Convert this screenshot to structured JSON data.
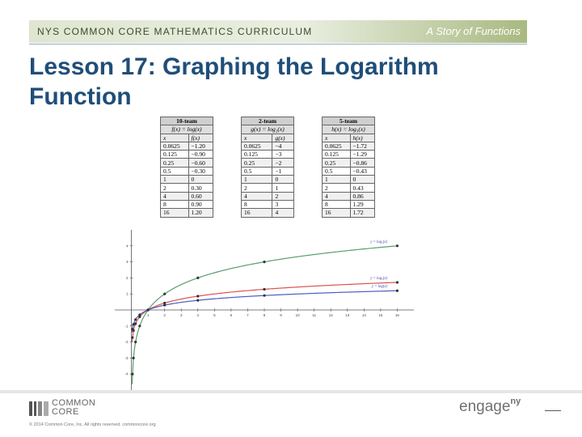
{
  "header": {
    "curriculum": "NYS COMMON CORE MATHEMATICS CURRICULUM",
    "story": "A Story of Functions"
  },
  "title": "Lesson 17:  Graphing the Logarithm Function",
  "tables": [
    {
      "team": "10-team",
      "function": "f(x) = log(x)",
      "col_x": "x",
      "col_y": "f(x)",
      "rows": [
        [
          "0.0625",
          "−1.20"
        ],
        [
          "0.125",
          "−0.90"
        ],
        [
          "0.25",
          "−0.60"
        ],
        [
          "0.5",
          "−0.30"
        ],
        [
          "1",
          "0"
        ],
        [
          "2",
          "0.30"
        ],
        [
          "4",
          "0.60"
        ],
        [
          "8",
          "0.90"
        ],
        [
          "16",
          "1.20"
        ]
      ]
    },
    {
      "team": "2-team",
      "function": "g(x) = log₂(x)",
      "col_x": "x",
      "col_y": "g(x)",
      "rows": [
        [
          "0.0625",
          "−4"
        ],
        [
          "0.125",
          "−3"
        ],
        [
          "0.25",
          "−2"
        ],
        [
          "0.5",
          "−1"
        ],
        [
          "1",
          "0"
        ],
        [
          "2",
          "1"
        ],
        [
          "4",
          "2"
        ],
        [
          "8",
          "3"
        ],
        [
          "16",
          "4"
        ]
      ]
    },
    {
      "team": "5-team",
      "function": "h(x) = log₅(x)",
      "col_x": "x",
      "col_y": "h(x)",
      "rows": [
        [
          "0.0625",
          "−1.72"
        ],
        [
          "0.125",
          "−1.29"
        ],
        [
          "0.25",
          "−0.86"
        ],
        [
          "0.5",
          "−0.43"
        ],
        [
          "1",
          "0"
        ],
        [
          "2",
          "0.43"
        ],
        [
          "4",
          "0.86"
        ],
        [
          "8",
          "1.29"
        ],
        [
          "16",
          "1.72"
        ]
      ]
    }
  ],
  "chart_data": {
    "type": "line",
    "xlim": [
      -1,
      17
    ],
    "ylim": [
      -5,
      5
    ],
    "x_ticks": [
      1,
      2,
      3,
      4,
      5,
      6,
      7,
      8,
      9,
      10,
      11,
      12,
      13,
      14,
      15,
      16
    ],
    "y_ticks": [
      -4,
      -3,
      -2,
      -1,
      1,
      2,
      3,
      4
    ],
    "grid": false,
    "series": [
      {
        "name": "y = log₂(x)",
        "color": "#5a9e6f",
        "x": [
          0.0625,
          0.125,
          0.25,
          0.5,
          1,
          2,
          4,
          8,
          16
        ],
        "y": [
          -4,
          -3,
          -2,
          -1,
          0,
          1,
          2,
          3,
          4
        ]
      },
      {
        "name": "y = log₅(x)",
        "color": "#d9534f",
        "x": [
          0.0625,
          0.125,
          0.25,
          0.5,
          1,
          2,
          4,
          8,
          16
        ],
        "y": [
          -1.72,
          -1.29,
          -0.86,
          -0.43,
          0,
          0.43,
          0.86,
          1.29,
          1.72
        ]
      },
      {
        "name": "y = log(x)",
        "color": "#4a5fc1",
        "x": [
          0.0625,
          0.125,
          0.25,
          0.5,
          1,
          2,
          4,
          8,
          16
        ],
        "y": [
          -1.2,
          -0.9,
          -0.6,
          -0.3,
          0,
          0.3,
          0.6,
          0.9,
          1.2
        ]
      }
    ],
    "label_color": "#3a3aa0"
  },
  "footer": {
    "logo_text_line1": "COMMON",
    "logo_text_line2": "CORE",
    "copyright": "© 2014 Common Core, Inc. All rights reserved. commoncore.org",
    "engage": "engage",
    "engage_ny": "ny"
  }
}
